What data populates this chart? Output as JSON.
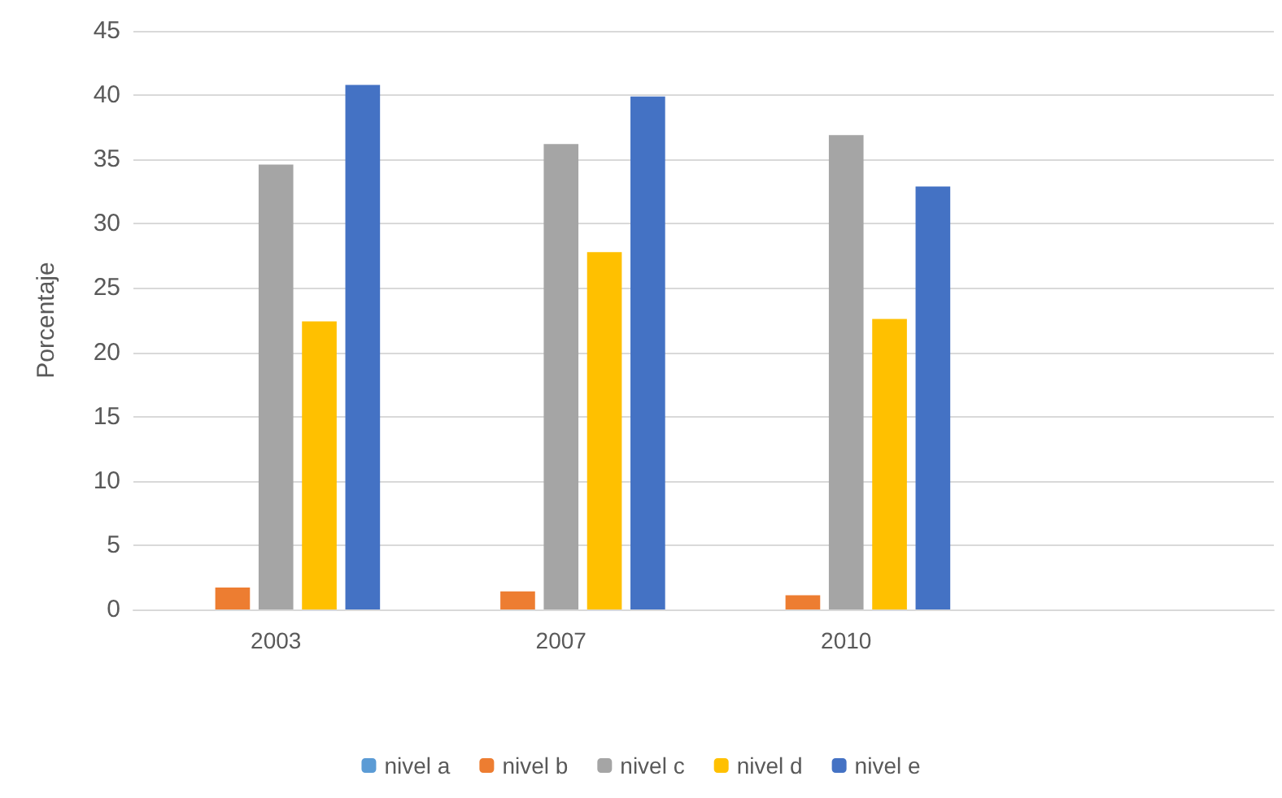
{
  "chart_data": {
    "type": "bar",
    "ylabel": "Porcentaje",
    "categories": [
      "2003",
      "2007",
      "2010",
      null
    ],
    "series": [
      {
        "name": "nivel a",
        "color": "#5b9bd5",
        "values": [
          0,
          0,
          0,
          null
        ]
      },
      {
        "name": "nivel b",
        "color": "#ed7d31",
        "values": [
          1.7,
          1.4,
          1.1,
          null
        ]
      },
      {
        "name": "nivel c",
        "color": "#a5a5a5",
        "values": [
          34.6,
          36.2,
          36.9,
          null
        ]
      },
      {
        "name": "nivel d",
        "color": "#ffc000",
        "values": [
          22.4,
          27.8,
          22.6,
          null
        ]
      },
      {
        "name": "nivel e",
        "color": "#4472c4",
        "values": [
          40.8,
          39.9,
          32.9,
          null
        ]
      }
    ],
    "ylim": [
      0,
      45
    ],
    "yticks": [
      0,
      5,
      10,
      15,
      20,
      25,
      30,
      35,
      40,
      45
    ],
    "grid": "y",
    "legend": "bottom"
  }
}
